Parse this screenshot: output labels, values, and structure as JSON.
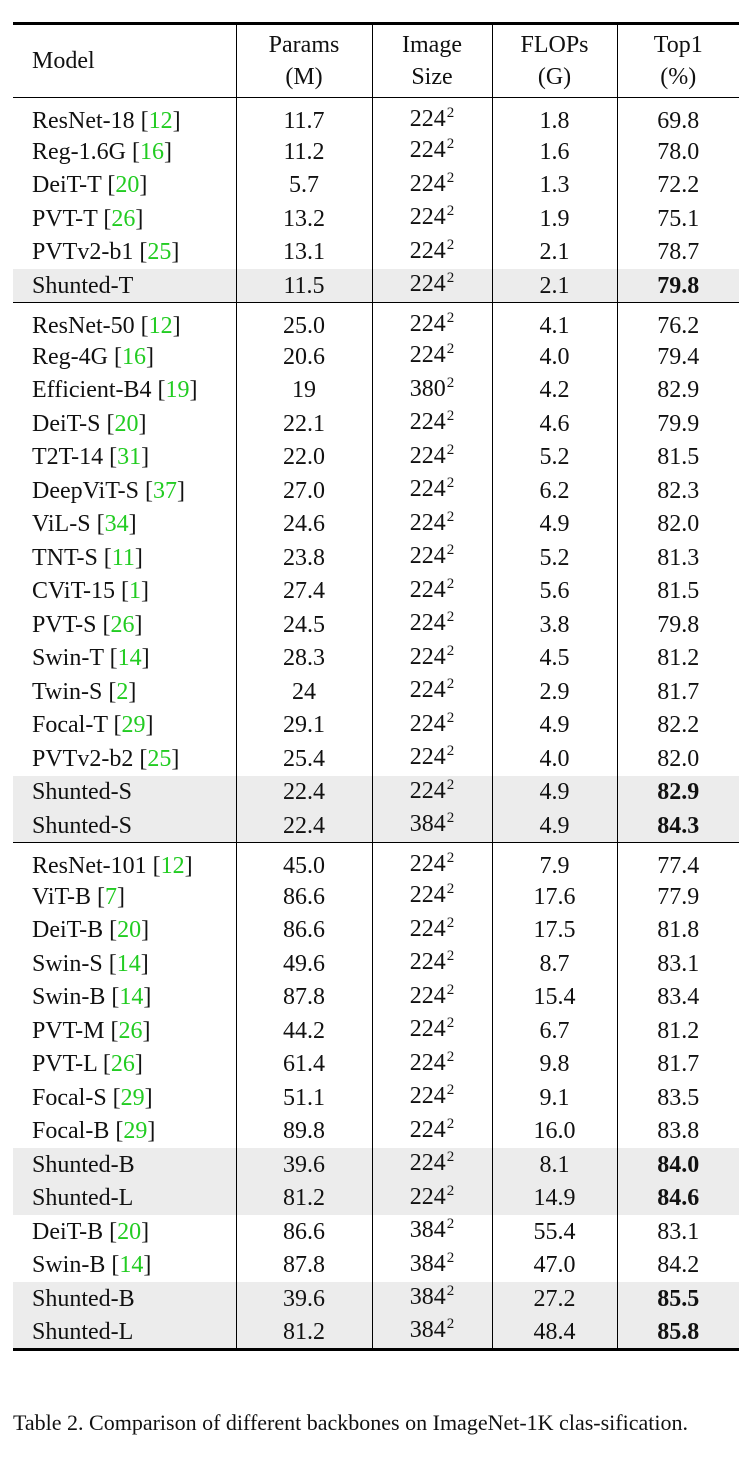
{
  "table": {
    "headers": [
      {
        "line1": "Model",
        "line2": ""
      },
      {
        "line1": "Params",
        "line2": "(M)"
      },
      {
        "line1": "Image",
        "line2": "Size"
      },
      {
        "line1": "FLOPs",
        "line2": "(G)"
      },
      {
        "line1": "Top1",
        "line2": "(%)"
      }
    ],
    "groups": [
      [
        {
          "model": "ResNet-18",
          "cite": "12",
          "params": "11.7",
          "size": "224",
          "flops": "1.8",
          "top1": "69.8",
          "shaded": false,
          "bold": false
        },
        {
          "model": "Reg-1.6G",
          "cite": "16",
          "params": "11.2",
          "size": "224",
          "flops": "1.6",
          "top1": "78.0",
          "shaded": false,
          "bold": false
        },
        {
          "model": "DeiT-T",
          "cite": "20",
          "params": "5.7",
          "size": "224",
          "flops": "1.3",
          "top1": "72.2",
          "shaded": false,
          "bold": false
        },
        {
          "model": "PVT-T",
          "cite": "26",
          "params": "13.2",
          "size": "224",
          "flops": "1.9",
          "top1": "75.1",
          "shaded": false,
          "bold": false
        },
        {
          "model": "PVTv2-b1",
          "cite": "25",
          "params": "13.1",
          "size": "224",
          "flops": "2.1",
          "top1": "78.7",
          "shaded": false,
          "bold": false
        },
        {
          "model": "Shunted-T",
          "cite": "",
          "params": "11.5",
          "size": "224",
          "flops": "2.1",
          "top1": "79.8",
          "shaded": true,
          "bold": true
        }
      ],
      [
        {
          "model": "ResNet-50",
          "cite": "12",
          "params": "25.0",
          "size": "224",
          "flops": "4.1",
          "top1": "76.2",
          "shaded": false,
          "bold": false
        },
        {
          "model": "Reg-4G",
          "cite": "16",
          "params": "20.6",
          "size": "224",
          "flops": "4.0",
          "top1": "79.4",
          "shaded": false,
          "bold": false
        },
        {
          "model": "Efficient-B4",
          "cite": "19",
          "params": "19",
          "size": "380",
          "flops": "4.2",
          "top1": "82.9",
          "shaded": false,
          "bold": false
        },
        {
          "model": "DeiT-S",
          "cite": "20",
          "params": "22.1",
          "size": "224",
          "flops": "4.6",
          "top1": "79.9",
          "shaded": false,
          "bold": false
        },
        {
          "model": "T2T-14",
          "cite": "31",
          "params": "22.0",
          "size": "224",
          "flops": "5.2",
          "top1": "81.5",
          "shaded": false,
          "bold": false
        },
        {
          "model": "DeepViT-S",
          "cite": "37",
          "params": "27.0",
          "size": "224",
          "flops": "6.2",
          "top1": "82.3",
          "shaded": false,
          "bold": false
        },
        {
          "model": "ViL-S",
          "cite": "34",
          "params": "24.6",
          "size": "224",
          "flops": "4.9",
          "top1": "82.0",
          "shaded": false,
          "bold": false
        },
        {
          "model": "TNT-S",
          "cite": "11",
          "params": "23.8",
          "size": "224",
          "flops": "5.2",
          "top1": "81.3",
          "shaded": false,
          "bold": false
        },
        {
          "model": "CViT-15",
          "cite": "1",
          "params": "27.4",
          "size": "224",
          "flops": "5.6",
          "top1": "81.5",
          "shaded": false,
          "bold": false
        },
        {
          "model": "PVT-S",
          "cite": "26",
          "params": "24.5",
          "size": "224",
          "flops": "3.8",
          "top1": "79.8",
          "shaded": false,
          "bold": false
        },
        {
          "model": "Swin-T",
          "cite": "14",
          "params": "28.3",
          "size": "224",
          "flops": "4.5",
          "top1": "81.2",
          "shaded": false,
          "bold": false
        },
        {
          "model": "Twin-S",
          "cite": "2",
          "params": "24",
          "size": "224",
          "flops": "2.9",
          "top1": "81.7",
          "shaded": false,
          "bold": false
        },
        {
          "model": "Focal-T",
          "cite": "29",
          "params": "29.1",
          "size": "224",
          "flops": "4.9",
          "top1": "82.2",
          "shaded": false,
          "bold": false
        },
        {
          "model": "PVTv2-b2",
          "cite": "25",
          "params": "25.4",
          "size": "224",
          "flops": "4.0",
          "top1": "82.0",
          "shaded": false,
          "bold": false
        },
        {
          "model": "Shunted-S",
          "cite": "",
          "params": "22.4",
          "size": "224",
          "flops": "4.9",
          "top1": "82.9",
          "shaded": true,
          "bold": true
        },
        {
          "model": "Shunted-S",
          "cite": "",
          "params": "22.4",
          "size": "384",
          "flops": "4.9",
          "top1": "84.3",
          "shaded": true,
          "bold": true
        }
      ],
      [
        {
          "model": "ResNet-101",
          "cite": "12",
          "params": "45.0",
          "size": "224",
          "flops": "7.9",
          "top1": "77.4",
          "shaded": false,
          "bold": false
        },
        {
          "model": "ViT-B",
          "cite": "7",
          "params": "86.6",
          "size": "224",
          "flops": "17.6",
          "top1": "77.9",
          "shaded": false,
          "bold": false
        },
        {
          "model": "DeiT-B",
          "cite": "20",
          "params": "86.6",
          "size": "224",
          "flops": "17.5",
          "top1": "81.8",
          "shaded": false,
          "bold": false
        },
        {
          "model": "Swin-S",
          "cite": "14",
          "params": "49.6",
          "size": "224",
          "flops": "8.7",
          "top1": "83.1",
          "shaded": false,
          "bold": false
        },
        {
          "model": "Swin-B",
          "cite": "14",
          "params": "87.8",
          "size": "224",
          "flops": "15.4",
          "top1": "83.4",
          "shaded": false,
          "bold": false
        },
        {
          "model": "PVT-M",
          "cite": "26",
          "params": "44.2",
          "size": "224",
          "flops": "6.7",
          "top1": "81.2",
          "shaded": false,
          "bold": false
        },
        {
          "model": "PVT-L",
          "cite": "26",
          "params": "61.4",
          "size": "224",
          "flops": "9.8",
          "top1": "81.7",
          "shaded": false,
          "bold": false
        },
        {
          "model": "Focal-S",
          "cite": "29",
          "params": "51.1",
          "size": "224",
          "flops": "9.1",
          "top1": "83.5",
          "shaded": false,
          "bold": false
        },
        {
          "model": "Focal-B",
          "cite": "29",
          "params": "89.8",
          "size": "224",
          "flops": "16.0",
          "top1": "83.8",
          "shaded": false,
          "bold": false
        },
        {
          "model": "Shunted-B",
          "cite": "",
          "params": "39.6",
          "size": "224",
          "flops": "8.1",
          "top1": "84.0",
          "shaded": true,
          "bold": true
        },
        {
          "model": "Shunted-L",
          "cite": "",
          "params": "81.2",
          "size": "224",
          "flops": "14.9",
          "top1": "84.6",
          "shaded": true,
          "bold": true
        },
        {
          "model": "DeiT-B",
          "cite": "20",
          "params": "86.6",
          "size": "384",
          "flops": "55.4",
          "top1": "83.1",
          "shaded": false,
          "bold": false
        },
        {
          "model": "Swin-B",
          "cite": "14",
          "params": "87.8",
          "size": "384",
          "flops": "47.0",
          "top1": "84.2",
          "shaded": false,
          "bold": false
        },
        {
          "model": "Shunted-B",
          "cite": "",
          "params": "39.6",
          "size": "384",
          "flops": "27.2",
          "top1": "85.5",
          "shaded": true,
          "bold": true
        },
        {
          "model": "Shunted-L",
          "cite": "",
          "params": "81.2",
          "size": "384",
          "flops": "48.4",
          "top1": "85.8",
          "shaded": true,
          "bold": true
        }
      ]
    ],
    "size_exponent": "2"
  },
  "caption": {
    "label": "Table 2.",
    "text": "Comparison of different backbones on ImageNet-1K clas-sification."
  },
  "colors": {
    "citation": "#22cc22",
    "shade": "#ececec"
  }
}
